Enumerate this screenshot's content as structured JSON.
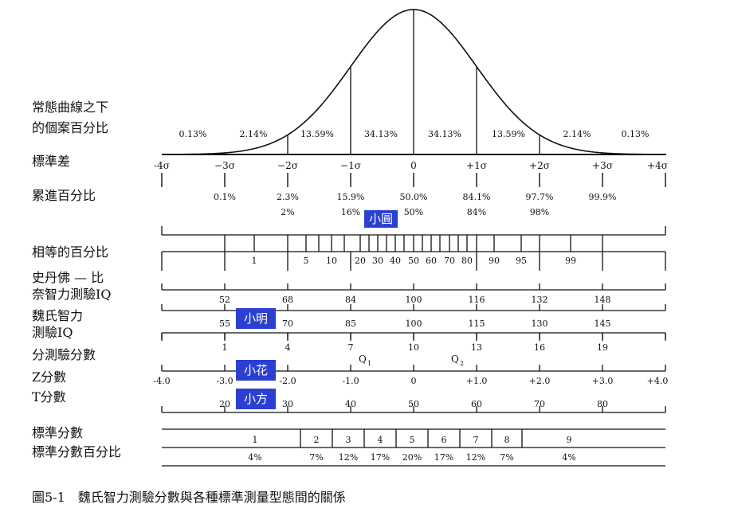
{
  "row_labels": {
    "normal_curve_line1": "常態曲線之下",
    "normal_curve_line2": "的個案百分比",
    "std_dev": "標準差",
    "cumulative": "累進百分比",
    "percentile": "相等的百分比",
    "stanford_line1": "史丹佛 — 比",
    "stanford_line2": "奈智力測驗IQ",
    "wechsler_line1": "魏氏智力",
    "wechsler_line2": "測驗IQ",
    "subtest": "分測驗分數",
    "z": "Z分數",
    "t": "T分數",
    "stanine": "標準分數",
    "stanine_pct": "標準分數百分比"
  },
  "area_percents": [
    "0.13%",
    "2.14%",
    "13.59%",
    "34.13%",
    "34.13%",
    "13.59%",
    "2.14%",
    "0.13%"
  ],
  "sigma_labels": [
    "-4σ",
    "−3σ",
    "−2σ",
    "−1σ",
    "0",
    "+1σ",
    "+2σ",
    "+3σ",
    "+4σ"
  ],
  "cumulative": {
    "values": [
      "0.1%",
      "2.3%",
      "15.9%",
      "50.0%",
      "84.1%",
      "97.7%",
      "99.9%"
    ],
    "rounded": [
      "2%",
      "16%",
      "50%",
      "84%",
      "98%"
    ]
  },
  "percentile_labels": [
    "1",
    "5",
    "10",
    "20",
    "30",
    "40",
    "50",
    "60",
    "70",
    "80",
    "90",
    "95",
    "99"
  ],
  "stanford_iq": [
    "52",
    "68",
    "84",
    "100",
    "116",
    "132",
    "148"
  ],
  "wechsler_iq": [
    "55",
    "70",
    "85",
    "100",
    "115",
    "130",
    "145"
  ],
  "subtest_scores": [
    "1",
    "4",
    "7",
    "10",
    "13",
    "16",
    "19"
  ],
  "quartiles": {
    "q1": "Q",
    "q1_sub": "1",
    "q2": "Q",
    "q2_sub": "2"
  },
  "z_scores": [
    "-4.0",
    "-3.0",
    "-2.0",
    "-1.0",
    "0",
    "+1.0",
    "+2.0",
    "+3.0",
    "+4.0"
  ],
  "t_scores": [
    "20",
    "30",
    "40",
    "50",
    "60",
    "70",
    "80"
  ],
  "stanines": [
    "1",
    "2",
    "3",
    "4",
    "5",
    "6",
    "7",
    "8",
    "9"
  ],
  "stanine_percents": [
    "4%",
    "7%",
    "12%",
    "17%",
    "20%",
    "17%",
    "12%",
    "7%",
    "4%"
  ],
  "tags": {
    "small_circle": "小圓",
    "xiao_ming": "小明",
    "xiao_hua": "小花",
    "xiao_fang": "小方"
  },
  "caption": "圖5-1　魏氏智力測驗分數與各種標準測量型態間的關係",
  "colors": {
    "tag": "#2b3fd1",
    "line": "#111111"
  }
}
